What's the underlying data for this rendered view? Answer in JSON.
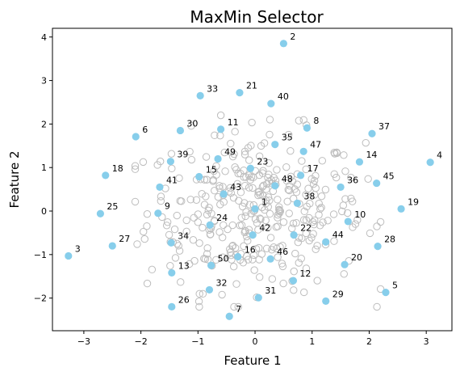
{
  "chart_data": {
    "type": "scatter",
    "title": "MaxMin Selector",
    "xlabel": "Feature 1",
    "ylabel": "Feature 2",
    "xlim": [
      -3.55,
      3.45
    ],
    "ylim": [
      -2.75,
      4.2
    ],
    "xticks": [
      "-3",
      "-2",
      "-1",
      "0",
      "1",
      "2",
      "3"
    ],
    "yticks": [
      "-2",
      "-1",
      "0",
      "1",
      "2",
      "3",
      "4"
    ],
    "grid": false,
    "legend": "none",
    "colors": {
      "selected": "#87ceeb",
      "background": "#bdbdbd"
    },
    "selected_points": [
      {
        "id": "1",
        "x": 0.0,
        "y": 0.05
      },
      {
        "id": "2",
        "x": 0.5,
        "y": 3.85
      },
      {
        "id": "3",
        "x": -3.27,
        "y": -1.03
      },
      {
        "id": "4",
        "x": 3.07,
        "y": 1.12
      },
      {
        "id": "5",
        "x": 2.29,
        "y": -1.87
      },
      {
        "id": "6",
        "x": -2.09,
        "y": 1.71
      },
      {
        "id": "7",
        "x": -0.45,
        "y": -2.42
      },
      {
        "id": "8",
        "x": 0.91,
        "y": 1.91
      },
      {
        "id": "9",
        "x": -1.7,
        "y": -0.05
      },
      {
        "id": "10",
        "x": 1.63,
        "y": -0.24
      },
      {
        "id": "11",
        "x": -0.6,
        "y": 1.88
      },
      {
        "id": "12",
        "x": 0.67,
        "y": -1.6
      },
      {
        "id": "13",
        "x": -1.46,
        "y": -1.42
      },
      {
        "id": "14",
        "x": 1.83,
        "y": 1.13
      },
      {
        "id": "15",
        "x": -0.98,
        "y": 0.79
      },
      {
        "id": "16",
        "x": -0.3,
        "y": -1.05
      },
      {
        "id": "17",
        "x": 0.8,
        "y": 0.82
      },
      {
        "id": "18",
        "x": -2.62,
        "y": 0.82
      },
      {
        "id": "19",
        "x": 2.56,
        "y": 0.05
      },
      {
        "id": "20",
        "x": 1.57,
        "y": -1.23
      },
      {
        "id": "21",
        "x": -0.27,
        "y": 2.72
      },
      {
        "id": "22",
        "x": 0.68,
        "y": -0.55
      },
      {
        "id": "23",
        "x": -0.08,
        "y": 0.98
      },
      {
        "id": "24",
        "x": -0.79,
        "y": -0.32
      },
      {
        "id": "25",
        "x": -2.71,
        "y": -0.06
      },
      {
        "id": "26",
        "x": -1.46,
        "y": -2.2
      },
      {
        "id": "27",
        "x": -2.5,
        "y": -0.8
      },
      {
        "id": "28",
        "x": 2.15,
        "y": -0.81
      },
      {
        "id": "29",
        "x": 1.24,
        "y": -2.07
      },
      {
        "id": "30",
        "x": -1.31,
        "y": 1.85
      },
      {
        "id": "31",
        "x": 0.06,
        "y": -1.99
      },
      {
        "id": "32",
        "x": -0.8,
        "y": -1.81
      },
      {
        "id": "33",
        "x": -0.96,
        "y": 2.65
      },
      {
        "id": "34",
        "x": -1.47,
        "y": -0.73
      },
      {
        "id": "35",
        "x": 0.35,
        "y": 1.53
      },
      {
        "id": "36",
        "x": 1.5,
        "y": 0.55
      },
      {
        "id": "37",
        "x": 2.05,
        "y": 1.78
      },
      {
        "id": "38",
        "x": 0.74,
        "y": 0.18
      },
      {
        "id": "39",
        "x": -1.48,
        "y": 1.14
      },
      {
        "id": "40",
        "x": 0.28,
        "y": 2.47
      },
      {
        "id": "41",
        "x": -1.67,
        "y": 0.55
      },
      {
        "id": "42",
        "x": -0.04,
        "y": -0.55
      },
      {
        "id": "43",
        "x": -0.55,
        "y": 0.39
      },
      {
        "id": "44",
        "x": 1.24,
        "y": -0.71
      },
      {
        "id": "45",
        "x": 2.13,
        "y": 0.64
      },
      {
        "id": "46",
        "x": 0.27,
        "y": -1.1
      },
      {
        "id": "47",
        "x": 0.85,
        "y": 1.37
      },
      {
        "id": "48",
        "x": 0.35,
        "y": 0.58
      },
      {
        "id": "49",
        "x": -0.65,
        "y": 1.2
      },
      {
        "id": "50",
        "x": -0.77,
        "y": -1.25
      }
    ],
    "background_points": {
      "count": 350,
      "distribution": "standard normal, mean 0, sd ~0.9"
    }
  }
}
